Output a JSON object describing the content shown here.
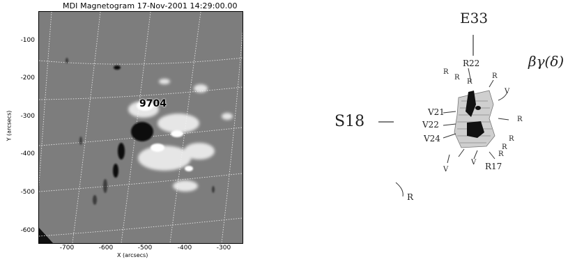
{
  "magnetogram": {
    "title": "MDI Magnetogram 17-Nov-2001 14:29:00.00",
    "region_label": "9704",
    "y_axis_label": "Y (arcsecs)",
    "x_axis_label": "X (arcsecs)",
    "y_ticks": [
      "-100",
      "-200",
      "-300",
      "-400",
      "-500",
      "-600"
    ],
    "x_ticks": [
      "-700",
      "-600",
      "-500",
      "-400",
      "-300"
    ]
  },
  "sketch": {
    "longitude": "E33",
    "latitude": "S18",
    "classification": "βγ(δ)",
    "spot_labels": [
      "R22",
      "V21",
      "V22",
      "V24",
      "R17"
    ],
    "small_marks": [
      "R",
      "R",
      "R",
      "R",
      "V",
      "R",
      "R",
      "R",
      "R",
      "V",
      "V",
      "R"
    ]
  }
}
